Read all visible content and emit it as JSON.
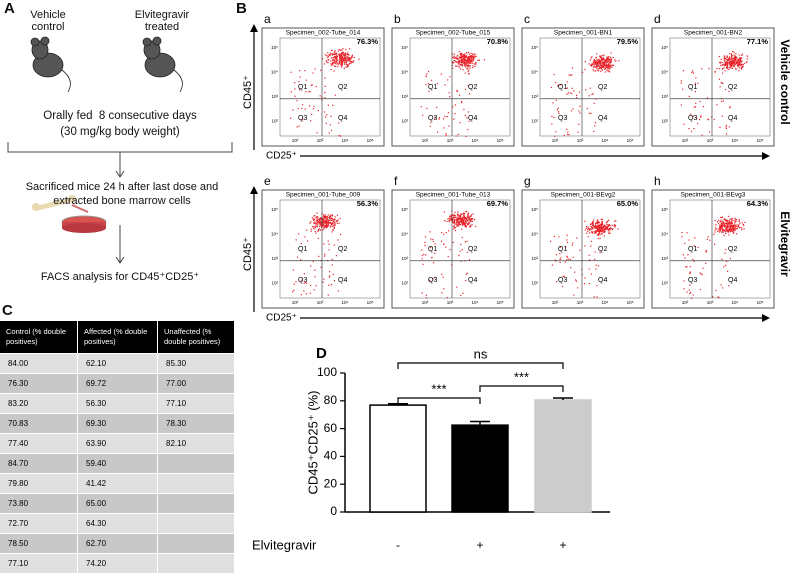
{
  "panel_a": {
    "label": "A",
    "groups": [
      "Vehicle control",
      "Elvitegravir treated"
    ],
    "treatment": [
      "Orally fed  8 consecutive days",
      "(30 mg/kg body weight)"
    ],
    "procedure": "Sacrificed mice 24 h after last dose and extracted bone marrow cells",
    "analysis": "FACS analysis for CD45⁺CD25⁺"
  },
  "panel_b": {
    "label": "B",
    "y_axis": "CD45⁺",
    "x_axis": "CD25⁺",
    "axis_ticks": [
      "10²",
      "10³",
      "10⁴",
      "10⁵"
    ],
    "quadrants": [
      "Q1",
      "Q2",
      "Q3",
      "Q4"
    ],
    "rows": [
      {
        "name": "Vehicle control",
        "plots": [
          {
            "letter": "a",
            "specimen": "Specimen_002-Tube_014",
            "percent": "76.3%"
          },
          {
            "letter": "b",
            "specimen": "Specimen_002-Tube_015",
            "percent": "70.8%"
          },
          {
            "letter": "c",
            "specimen": "Specimen_001-BN1",
            "percent": "79.5%"
          },
          {
            "letter": "d",
            "specimen": "Specimen_001-BN2",
            "percent": "77.1%"
          }
        ]
      },
      {
        "name": "Elvitegravir",
        "plots": [
          {
            "letter": "e",
            "specimen": "Specimen_001-Tube_009",
            "percent": "56.3%"
          },
          {
            "letter": "f",
            "specimen": "Specimen_001-Tube_013",
            "percent": "69.7%"
          },
          {
            "letter": "g",
            "specimen": "Specimen_001-BEvg2",
            "percent": "65.0%"
          },
          {
            "letter": "h",
            "specimen": "Specimen_001-BEvg3",
            "percent": "64.3%"
          }
        ]
      }
    ]
  },
  "panel_c": {
    "label": "C",
    "header": [
      "Control (% double positives)",
      "Affected (% double positives)",
      "Unaffected  (% double positives)"
    ],
    "rows": [
      [
        "84.00",
        "62.10",
        "85.30"
      ],
      [
        "76.30",
        "69.72",
        "77.00"
      ],
      [
        "83.20",
        "56.30",
        "77.10"
      ],
      [
        "70.83",
        "69.30",
        "78.30"
      ],
      [
        "77.40",
        "63.90",
        "82.10"
      ],
      [
        "84.70",
        "59.40"
      ],
      [
        "79.80",
        "41.42"
      ],
      [
        "73.80",
        "65.00"
      ],
      [
        "72.70",
        "64.30"
      ],
      [
        "78.50",
        "62.70"
      ],
      [
        "77.10",
        "74.20"
      ]
    ]
  },
  "chart_data": {
    "type": "bar",
    "panel_label": "D",
    "y_label": "CD45⁺CD25⁺ (%)",
    "x_label": "Elvitegravir",
    "categories": [
      "-",
      "+",
      "+"
    ],
    "values": [
      76.9,
      62.5,
      80.6
    ],
    "errors": [
      1.0,
      2.6,
      1.4
    ],
    "colors": [
      "#ffffff",
      "#000000",
      "#cccccc"
    ],
    "ylim": [
      0,
      100
    ],
    "yticks": [
      0,
      20,
      40,
      60,
      80,
      100
    ],
    "annotations": [
      "ns",
      "***",
      "***"
    ]
  }
}
